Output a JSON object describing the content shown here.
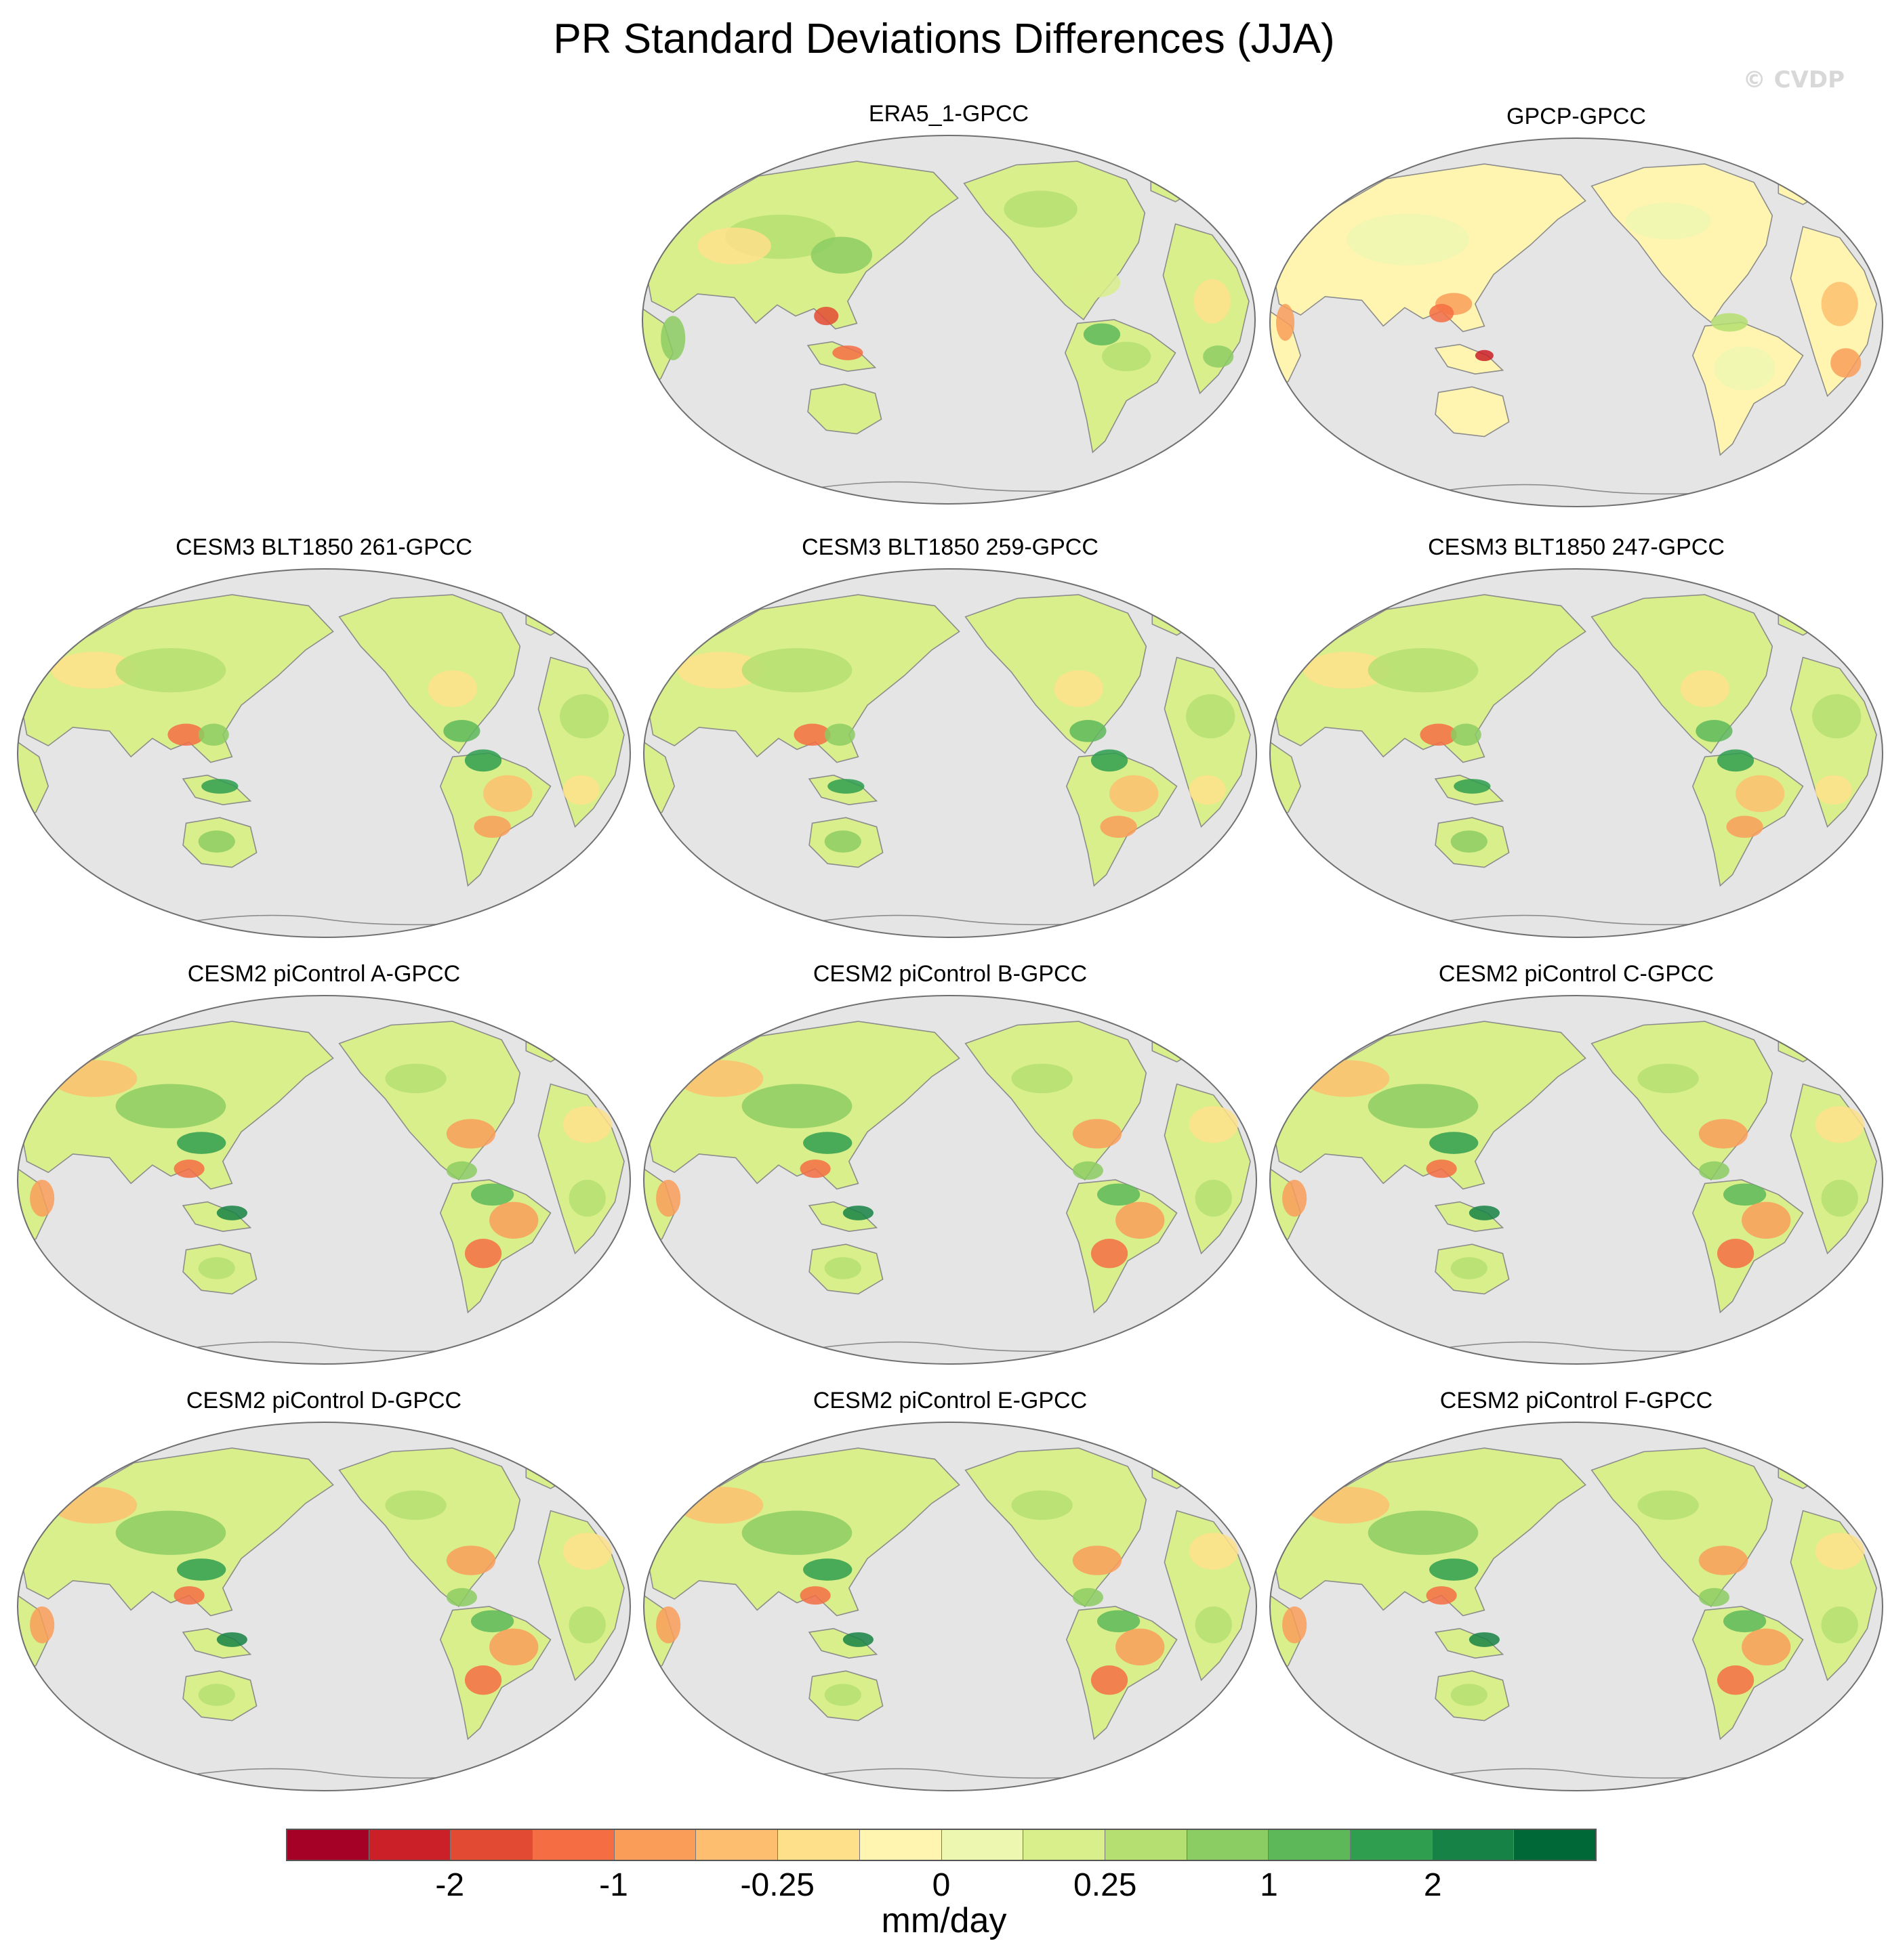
{
  "figure": {
    "title": "PR Standard Deviations Differences (JJA)",
    "watermark": "© CVDP"
  },
  "colors": {
    "ocean": "#e5e5e5",
    "coast": "#8c8c8c",
    "frame": "#707070"
  },
  "panels": [
    {
      "title": "ERA5_1-GPCC",
      "style": "obs_era5"
    },
    {
      "title": "GPCP-GPCC",
      "style": "obs_gpcp"
    },
    {
      "title": "CESM3 BLT1850 261-GPCC",
      "style": "cesm3"
    },
    {
      "title": "CESM3 BLT1850 259-GPCC",
      "style": "cesm3"
    },
    {
      "title": "CESM3 BLT1850 247-GPCC",
      "style": "cesm3"
    },
    {
      "title": "CESM2 piControl A-GPCC",
      "style": "cesm2"
    },
    {
      "title": "CESM2 piControl B-GPCC",
      "style": "cesm2"
    },
    {
      "title": "CESM2 piControl C-GPCC",
      "style": "cesm2"
    },
    {
      "title": "CESM2 piControl D-GPCC",
      "style": "cesm2"
    },
    {
      "title": "CESM2 piControl E-GPCC",
      "style": "cesm2"
    },
    {
      "title": "CESM2 piControl F-GPCC",
      "style": "cesm2"
    }
  ],
  "colorbar": {
    "colors": [
      "#a50026",
      "#cb2027",
      "#e34a33",
      "#f46d43",
      "#f99d59",
      "#fdbf6f",
      "#fee08b",
      "#fff5b0",
      "#eef7b0",
      "#d9ef8b",
      "#b5df70",
      "#8ccd63",
      "#5db85a",
      "#2f9e4f",
      "#178245",
      "#006837"
    ],
    "labels": [
      {
        "text": "-2",
        "boundary": 2
      },
      {
        "text": "-1",
        "boundary": 4
      },
      {
        "text": "-0.25",
        "boundary": 6
      },
      {
        "text": "0",
        "boundary": 8
      },
      {
        "text": "0.25",
        "boundary": 10
      },
      {
        "text": "1",
        "boundary": 12
      },
      {
        "text": "2",
        "boundary": 14
      }
    ],
    "units": "mm/day"
  }
}
